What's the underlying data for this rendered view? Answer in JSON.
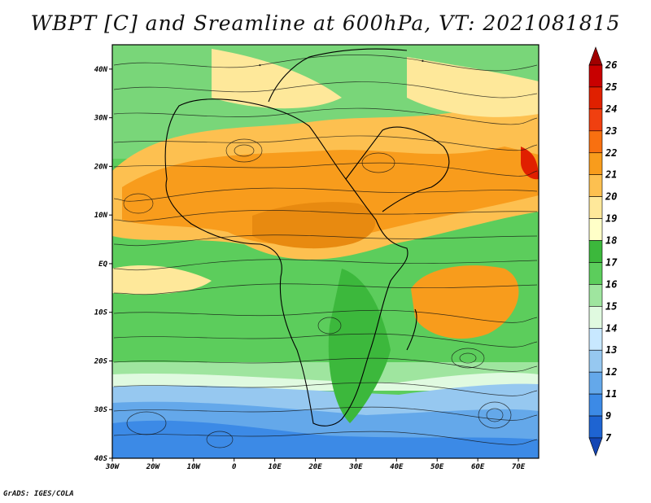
{
  "title": "WBPT [C] and Sreamline at 600hPa, VT: 2021081815",
  "credit": "GrADS: IGES/COLA",
  "map": {
    "lon_range": [
      -30,
      75
    ],
    "lat_range": [
      -40,
      45
    ],
    "lat_labels": [
      "40N",
      "30N",
      "20N",
      "10N",
      "EQ",
      "10S",
      "20S",
      "30S",
      "40S"
    ],
    "lat_values": [
      40,
      30,
      20,
      10,
      0,
      -10,
      -20,
      -30,
      -40
    ],
    "lon_labels": [
      "30W",
      "20W",
      "10W",
      "0",
      "10E",
      "20E",
      "30E",
      "40E",
      "50E",
      "60E",
      "70E"
    ],
    "lon_values": [
      -30,
      -20,
      -10,
      0,
      10,
      20,
      30,
      40,
      50,
      60,
      70
    ]
  },
  "colorbar": {
    "levels": [
      "26",
      "25",
      "24",
      "23",
      "22",
      "21",
      "20",
      "19",
      "18",
      "17",
      "16",
      "15",
      "14",
      "13",
      "12",
      "11",
      "9",
      "7"
    ],
    "colors": [
      "#a00000",
      "#c80000",
      "#e02000",
      "#f04010",
      "#f87010",
      "#f89c1c",
      "#fdc050",
      "#fee89a",
      "#ffffc8",
      "#3cb83c",
      "#5ccd5c",
      "#9fe59f",
      "#e0fae0",
      "#c8e8ff",
      "#96c8f0",
      "#64a8ea",
      "#3c8ae6",
      "#1e64d2",
      "#1446b4"
    ]
  }
}
